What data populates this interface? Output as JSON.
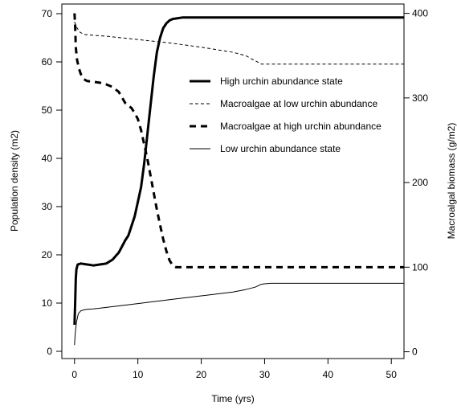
{
  "chart_data": {
    "type": "line",
    "title": "",
    "xlabel": "Time (yrs)",
    "ylabel_left": "Population density (m2)",
    "ylabel_right": "Macroalgal biomass (g/m2)",
    "xlim": [
      -2,
      52
    ],
    "ylim_left": [
      -1.5,
      72
    ],
    "ylim_right": [
      -8,
      411
    ],
    "x_ticks": [
      0,
      10,
      20,
      30,
      40,
      50
    ],
    "y_left_ticks": [
      0,
      10,
      20,
      30,
      40,
      50,
      60,
      70
    ],
    "y_right_ticks": [
      0,
      100,
      200,
      300,
      400
    ],
    "grid": false,
    "legend_position": "center-right",
    "series": [
      {
        "name": "High urchin abundance state",
        "axis": "left",
        "line_style": "solid",
        "line_weight": "thick",
        "x": [
          0,
          0.1,
          0.2,
          0.3,
          0.5,
          1,
          2,
          3,
          4,
          5,
          6,
          7,
          8,
          8.5,
          9,
          9.5,
          10,
          10.5,
          11,
          11.5,
          12,
          12.5,
          13,
          13.5,
          14,
          14.5,
          15,
          15.5,
          16,
          17,
          20,
          30,
          40,
          52
        ],
        "y": [
          5.5,
          10,
          15,
          17,
          18,
          18.2,
          18,
          17.8,
          18,
          18.2,
          19,
          20.5,
          23,
          24,
          26,
          28,
          31,
          34,
          39,
          45,
          51,
          57,
          62,
          65,
          67,
          68,
          68.6,
          68.9,
          69,
          69.2,
          69.2,
          69.2,
          69.2,
          69.2
        ]
      },
      {
        "name": "Macroalgae at low urchin abundance",
        "axis": "right",
        "line_style": "dashed-fine",
        "line_weight": "thin",
        "x": [
          0,
          0.3,
          0.8,
          1.5,
          3,
          5,
          10,
          15,
          20,
          25,
          27,
          29,
          29.5,
          30,
          31,
          35,
          40,
          45,
          52
        ],
        "y": [
          390,
          384,
          378,
          375,
          374,
          373,
          369,
          365,
          360,
          354,
          350,
          342,
          340,
          340,
          340,
          340,
          340,
          340,
          340
        ]
      },
      {
        "name": "Macroalgae at high urchin abundance",
        "axis": "right",
        "line_style": "dashed",
        "line_weight": "thick",
        "x": [
          0,
          0.1,
          0.2,
          0.4,
          0.7,
          1,
          1.5,
          2,
          3,
          4,
          5,
          6,
          7,
          8,
          9,
          9.5,
          10,
          10.5,
          11,
          11.5,
          12,
          12.5,
          13,
          13.5,
          14,
          14.5,
          15,
          15.5,
          16,
          20,
          30,
          40,
          52
        ],
        "y": [
          400,
          385,
          360,
          345,
          335,
          328,
          322,
          320,
          319,
          318,
          316,
          313,
          307,
          294,
          288,
          282,
          275,
          262,
          245,
          228,
          208,
          188,
          168,
          150,
          133,
          119,
          108,
          102,
          100,
          100,
          100,
          100,
          100
        ]
      },
      {
        "name": "Low urchin abundance state",
        "axis": "left",
        "line_style": "solid",
        "line_weight": "thin",
        "x": [
          0,
          0.1,
          0.3,
          0.6,
          1,
          1.5,
          2,
          3,
          5,
          10,
          15,
          20,
          25,
          27,
          28.5,
          29.5,
          30,
          31,
          35,
          40,
          45,
          52
        ],
        "y": [
          1.3,
          3.5,
          6,
          7.8,
          8.4,
          8.6,
          8.7,
          8.8,
          9.1,
          9.9,
          10.7,
          11.5,
          12.3,
          12.8,
          13.3,
          13.9,
          14.0,
          14.1,
          14.1,
          14.1,
          14.1,
          14.1
        ]
      }
    ]
  },
  "colors": {
    "line": "#000000",
    "frame": "#000000",
    "background": "#ffffff"
  }
}
